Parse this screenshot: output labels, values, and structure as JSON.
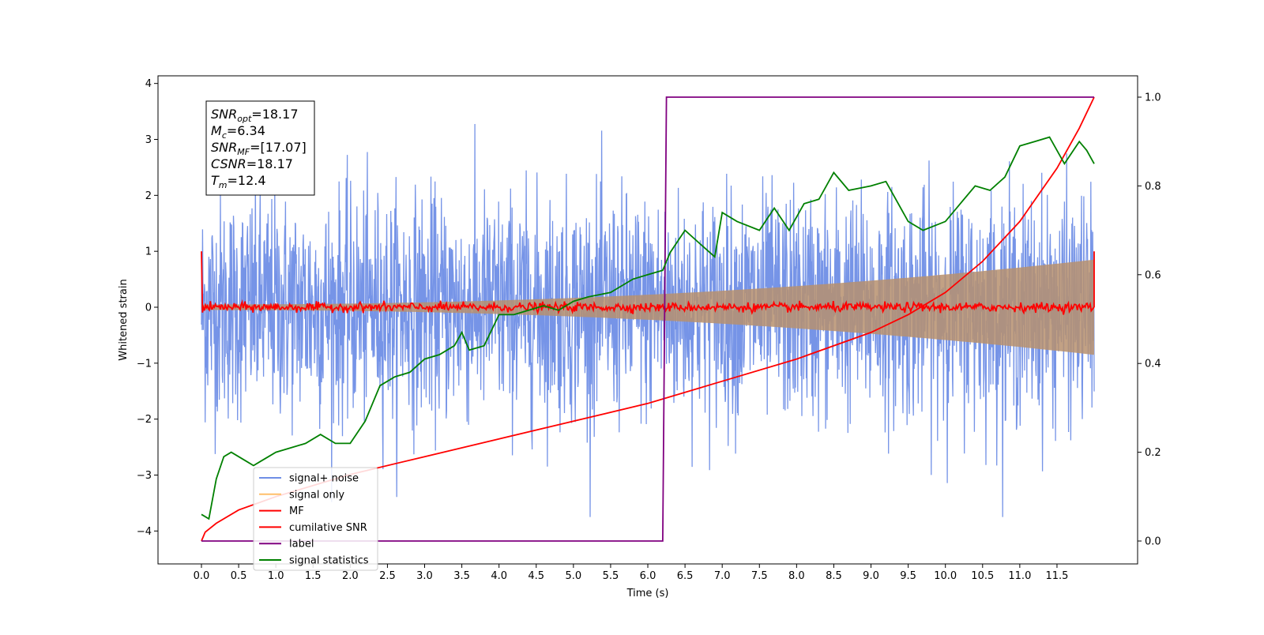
{
  "chart_data": {
    "type": "line",
    "xlabel": "Time (s)",
    "ylabel": "Whitened strain",
    "xlim": [
      -0.6,
      12.5
    ],
    "ylim": [
      -4.55,
      4.12
    ],
    "y2lim": [
      -0.05,
      1.05
    ],
    "x_ticks": [
      "0.0",
      "0.5",
      "1.0",
      "1.5",
      "2.0",
      "2.5",
      "3.0",
      "3.5",
      "4.0",
      "4.5",
      "5.0",
      "5.5",
      "6.0",
      "6.5",
      "7.0",
      "7.5",
      "8.0",
      "8.5",
      "9.0",
      "9.5",
      "10.0",
      "10.5",
      "11.0",
      "11.5"
    ],
    "y_ticks": [
      "−4",
      "−3",
      "−2",
      "−1",
      "0",
      "1",
      "2",
      "3",
      "4"
    ],
    "y2_ticks": [
      "0.0",
      "0.2",
      "0.4",
      "0.6",
      "0.8",
      "1.0"
    ],
    "annotation": [
      {
        "sym": "SNR",
        "sub": "opt",
        "val": "=18.17"
      },
      {
        "sym": "M",
        "sub": "c",
        "val": "=6.34"
      },
      {
        "sym": "SNR",
        "sub": "MF",
        "val": "=[17.07]"
      },
      {
        "sym": "CSNR",
        "sub": "",
        "val": "=18.17"
      },
      {
        "sym": "T",
        "sub": "m",
        "val": "=12.4"
      }
    ],
    "series": [
      {
        "name": "signal+ noise",
        "color": "#6f8ee6",
        "axis": "left",
        "kind": "noise",
        "x_range": [
          0,
          12.0
        ],
        "sigma": 1.0,
        "max_abs": 3.75
      },
      {
        "name": "signal only",
        "color": "#ffbf6a",
        "axis": "left",
        "kind": "envelope",
        "x_range": [
          0,
          12.0
        ],
        "amp_start": 0.05,
        "amp_end": 0.85
      },
      {
        "name": "MF",
        "color": "#ff0000",
        "axis": "left",
        "kind": "mf",
        "x_range": [
          0,
          12.0
        ],
        "spike_start": 1.0,
        "spike_end": 1.0
      },
      {
        "name": "cumilative SNR",
        "color": "#ff0000",
        "axis": "right",
        "x": [
          0,
          0.05,
          0.2,
          0.5,
          1,
          2,
          3,
          4,
          5,
          6,
          7,
          8,
          9,
          9.5,
          10,
          10.5,
          11,
          11.5,
          11.8,
          12.0
        ],
        "values": [
          0.0,
          0.02,
          0.04,
          0.07,
          0.1,
          0.15,
          0.19,
          0.23,
          0.27,
          0.31,
          0.36,
          0.41,
          0.47,
          0.51,
          0.56,
          0.63,
          0.72,
          0.84,
          0.93,
          1.0
        ]
      },
      {
        "name": "label",
        "color": "#800080",
        "axis": "right",
        "x": [
          0,
          6.2,
          6.25,
          12.0
        ],
        "values": [
          0,
          0,
          1,
          1
        ]
      },
      {
        "name": "signal statistics",
        "color": "#008000",
        "axis": "right",
        "x": [
          0,
          0.1,
          0.2,
          0.3,
          0.4,
          0.5,
          0.6,
          0.7,
          0.8,
          0.9,
          1.0,
          1.2,
          1.4,
          1.6,
          1.8,
          2.0,
          2.2,
          2.4,
          2.6,
          2.8,
          3.0,
          3.2,
          3.4,
          3.5,
          3.6,
          3.8,
          4.0,
          4.2,
          4.4,
          4.6,
          4.8,
          5.0,
          5.2,
          5.5,
          5.8,
          6.0,
          6.2,
          6.3,
          6.5,
          6.7,
          6.9,
          7.0,
          7.2,
          7.5,
          7.7,
          7.9,
          8.1,
          8.3,
          8.5,
          8.7,
          9.0,
          9.2,
          9.5,
          9.7,
          10.0,
          10.2,
          10.4,
          10.6,
          10.8,
          11.0,
          11.2,
          11.4,
          11.6,
          11.8,
          11.9,
          12.0
        ],
        "values": [
          0.06,
          0.05,
          0.14,
          0.19,
          0.2,
          0.19,
          0.18,
          0.17,
          0.18,
          0.19,
          0.2,
          0.21,
          0.22,
          0.24,
          0.22,
          0.22,
          0.27,
          0.35,
          0.37,
          0.38,
          0.41,
          0.42,
          0.44,
          0.47,
          0.43,
          0.44,
          0.51,
          0.51,
          0.52,
          0.53,
          0.52,
          0.54,
          0.55,
          0.56,
          0.59,
          0.6,
          0.61,
          0.65,
          0.7,
          0.67,
          0.64,
          0.74,
          0.72,
          0.7,
          0.75,
          0.7,
          0.76,
          0.77,
          0.83,
          0.79,
          0.8,
          0.81,
          0.72,
          0.7,
          0.72,
          0.76,
          0.8,
          0.79,
          0.82,
          0.89,
          0.9,
          0.91,
          0.85,
          0.9,
          0.88,
          0.85
        ]
      }
    ],
    "legend_loc": "lower left"
  }
}
